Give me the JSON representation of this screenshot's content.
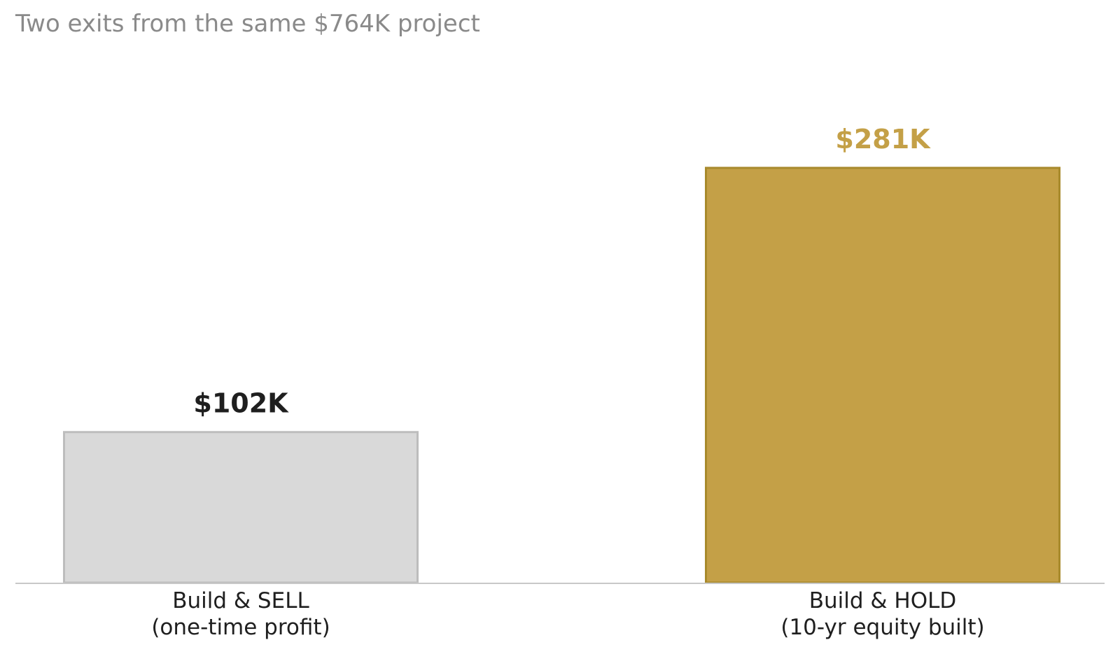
{
  "chart_data": {
    "type": "bar",
    "title": "Two exits from the same $764K project",
    "xlabel": "",
    "ylabel": "",
    "categories": [
      [
        "Build & SELL",
        "(one-time profit)"
      ],
      [
        "Build & HOLD",
        "(10-yr equity built)"
      ]
    ],
    "values": [
      102,
      281
    ],
    "value_labels": [
      "$102K",
      "$281K"
    ],
    "unit": "$K",
    "ylim": [
      0,
      330
    ],
    "grid": false,
    "legend": "none",
    "colors": {
      "bar_fills": [
        "#d9d9d9",
        "#c4a047"
      ],
      "bar_strokes": [
        "#bdbdbd",
        "#a88a2c"
      ],
      "value_label_colors": [
        "#1f1f1f",
        "#c4a047"
      ],
      "baseline": "#c8c8c8",
      "title": "#8a8a8a"
    }
  }
}
